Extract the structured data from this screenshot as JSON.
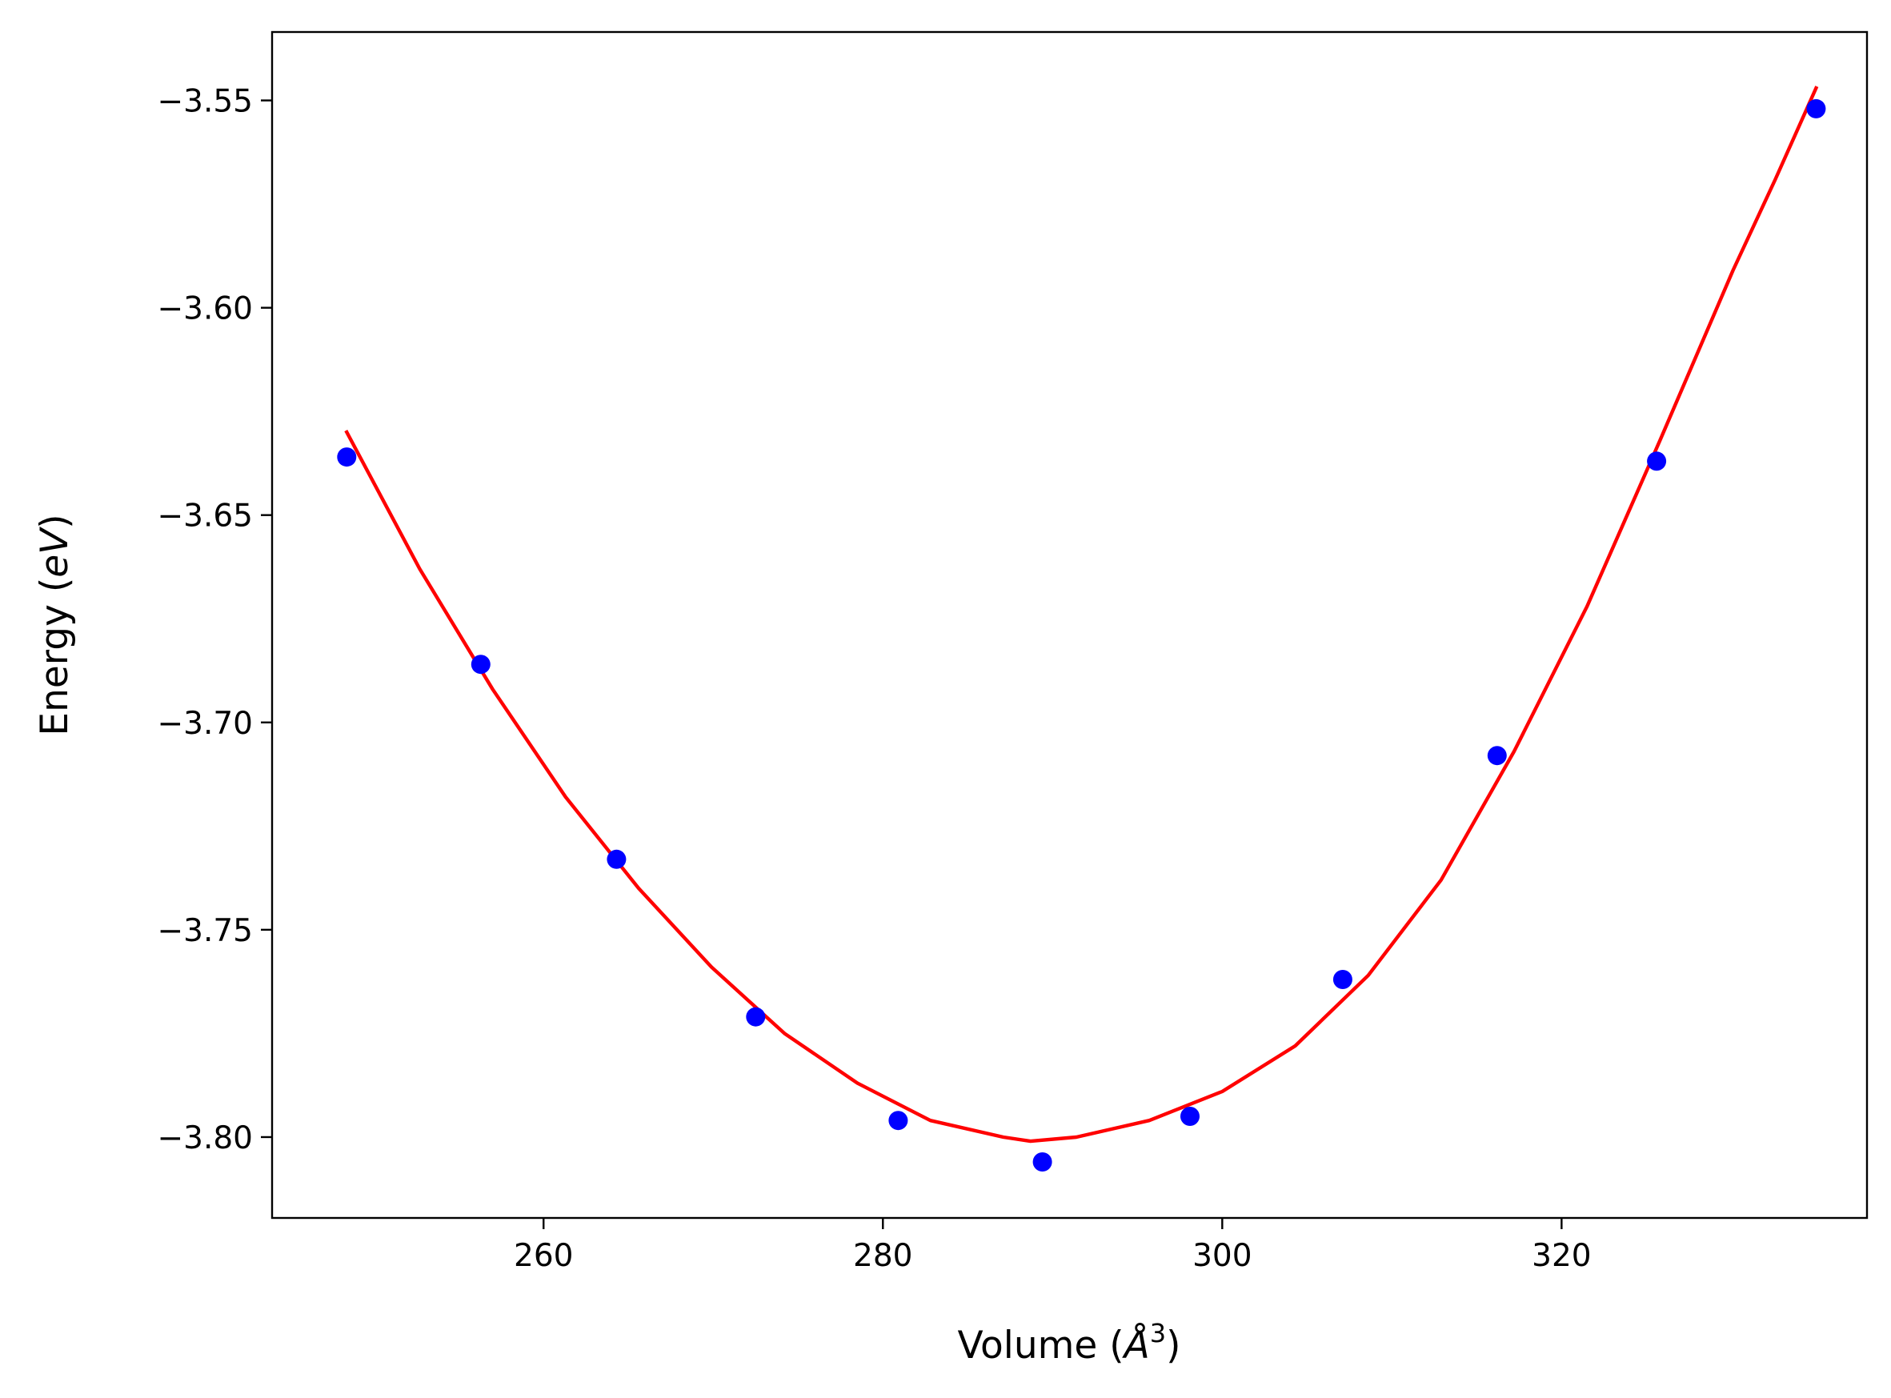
{
  "chart_data": {
    "type": "scatter",
    "title": "",
    "xlabel": "Volume (Å³)",
    "ylabel": "Energy (eV)",
    "xlabel_parts": {
      "main": "Volume (",
      "unit": "Å",
      "sup": "3",
      "close": ")"
    },
    "ylabel_parts": {
      "main": "Energy (",
      "unit": "eV",
      "close": ")"
    },
    "xlim": [
      244.0,
      338.0
    ],
    "ylim": [
      -3.8195,
      -3.5335
    ],
    "x_ticks": [
      260,
      280,
      300,
      320
    ],
    "x_tick_labels": [
      "260",
      "280",
      "300",
      "320"
    ],
    "y_ticks": [
      -3.55,
      -3.6,
      -3.65,
      -3.7,
      -3.75,
      -3.8
    ],
    "y_tick_labels": [
      "−3.55",
      "−3.60",
      "−3.65",
      "−3.70",
      "−3.75",
      "−3.80"
    ],
    "grid": false,
    "series": [
      {
        "type": "scatter",
        "color": "#0000ff",
        "x": [
          248.4,
          256.3,
          264.3,
          272.5,
          280.9,
          289.4,
          298.1,
          307.1,
          316.2,
          325.6,
          335.0
        ],
        "y": [
          -3.636,
          -3.686,
          -3.733,
          -3.771,
          -3.796,
          -3.806,
          -3.795,
          -3.762,
          -3.708,
          -3.637,
          -3.552
        ]
      },
      {
        "type": "line",
        "color": "#ff0000",
        "x": [
          248.4,
          252.7,
          257.0,
          261.3,
          265.6,
          269.9,
          274.2,
          278.5,
          282.8,
          287.1,
          288.7,
          291.4,
          295.7,
          300.0,
          304.3,
          308.6,
          312.9,
          317.2,
          321.5,
          325.8,
          330.1,
          332.6,
          335.0
        ],
        "y": [
          -3.63,
          -3.663,
          -3.692,
          -3.718,
          -3.74,
          -3.759,
          -3.775,
          -3.787,
          -3.796,
          -3.8,
          -3.801,
          -3.8,
          -3.796,
          -3.789,
          -3.778,
          -3.761,
          -3.738,
          -3.707,
          -3.672,
          -3.632,
          -3.591,
          -3.569,
          -3.547
        ]
      }
    ]
  }
}
